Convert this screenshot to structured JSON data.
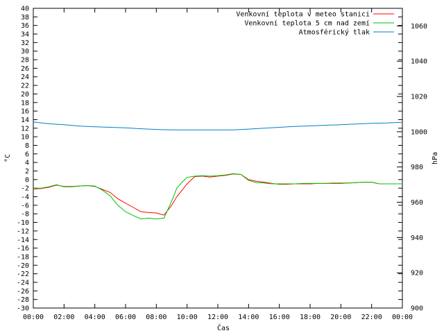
{
  "chart_data": {
    "type": "line",
    "title": "",
    "xlabel": "Čas",
    "ylabel": "°C",
    "y2label": "hPa",
    "ylim": [
      -30,
      40
    ],
    "y2lim": [
      900,
      1070
    ],
    "xlim": [
      "00:00",
      "24:00"
    ],
    "x_ticks": [
      "00:00",
      "02:00",
      "04:00",
      "06:00",
      "08:00",
      "10:00",
      "12:00",
      "14:00",
      "16:00",
      "18:00",
      "20:00",
      "22:00",
      "00:00"
    ],
    "y_ticks": [
      40,
      38,
      36,
      34,
      32,
      30,
      28,
      26,
      24,
      22,
      20,
      18,
      16,
      14,
      12,
      10,
      8,
      6,
      4,
      2,
      0,
      -2,
      -4,
      -6,
      -8,
      -10,
      -12,
      -14,
      -16,
      -18,
      -20,
      -22,
      -24,
      -26,
      -28,
      -30
    ],
    "y2_ticks": [
      1060,
      1040,
      1020,
      1000,
      980,
      960,
      940,
      920,
      900
    ],
    "grid": false,
    "legend_position": "top-right",
    "series": [
      {
        "name": "Venkovní teplota v meteo stanici",
        "color": "#ff0000",
        "axis": "left",
        "x": [
          "00:00",
          "00:30",
          "01:00",
          "01:30",
          "02:00",
          "02:30",
          "03:00",
          "03:30",
          "04:00",
          "04:30",
          "05:00",
          "05:30",
          "06:00",
          "06:30",
          "07:00",
          "07:30",
          "08:00",
          "08:30",
          "09:00",
          "09:20",
          "09:40",
          "10:00",
          "10:30",
          "11:00",
          "11:30",
          "12:00",
          "12:30",
          "13:00",
          "13:30",
          "14:00",
          "14:30",
          "15:00",
          "15:30",
          "16:00",
          "16:30",
          "17:00",
          "17:30",
          "18:00",
          "18:30",
          "19:00",
          "19:30",
          "20:00",
          "20:30",
          "21:00",
          "21:30",
          "22:00",
          "22:30",
          "23:00",
          "23:30",
          "24:00"
        ],
        "values": [
          -2.2,
          -2.1,
          -1.8,
          -1.3,
          -1.6,
          -1.6,
          -1.5,
          -1.4,
          -1.6,
          -2.3,
          -3.0,
          -4.5,
          -5.5,
          -6.5,
          -7.5,
          -7.7,
          -7.8,
          -8.3,
          -6.0,
          -4.0,
          -2.5,
          -1.0,
          0.7,
          0.8,
          0.6,
          0.8,
          1.0,
          1.3,
          1.2,
          0.0,
          -0.4,
          -0.6,
          -0.9,
          -1.1,
          -1.1,
          -1.0,
          -1.0,
          -1.0,
          -0.9,
          -0.9,
          -0.9,
          -0.9,
          -0.8,
          -0.7,
          -0.6,
          -0.6,
          -1.0,
          -1.0,
          -1.0,
          -1.0
        ]
      },
      {
        "name": "Venkovní teplota 5 cm nad zemí",
        "color": "#00c000",
        "axis": "left",
        "x": [
          "00:00",
          "00:30",
          "01:00",
          "01:30",
          "02:00",
          "02:30",
          "03:00",
          "03:30",
          "04:00",
          "04:30",
          "05:00",
          "05:30",
          "06:00",
          "06:30",
          "07:00",
          "07:30",
          "08:00",
          "08:30",
          "09:00",
          "09:20",
          "09:40",
          "10:00",
          "10:30",
          "11:00",
          "11:30",
          "12:00",
          "12:30",
          "13:00",
          "13:30",
          "14:00",
          "14:30",
          "15:00",
          "15:30",
          "16:00",
          "16:30",
          "17:00",
          "17:30",
          "18:00",
          "18:30",
          "19:00",
          "19:30",
          "20:00",
          "20:30",
          "21:00",
          "21:30",
          "22:00",
          "22:30",
          "23:00",
          "23:30",
          "24:00"
        ],
        "values": [
          -2.0,
          -2.0,
          -1.7,
          -1.2,
          -1.7,
          -1.7,
          -1.5,
          -1.4,
          -1.5,
          -2.5,
          -3.8,
          -6.0,
          -7.5,
          -8.4,
          -9.2,
          -9.0,
          -9.2,
          -9.0,
          -5.0,
          -2.0,
          -0.6,
          0.5,
          0.8,
          0.9,
          0.8,
          0.9,
          1.1,
          1.4,
          1.2,
          -0.2,
          -0.7,
          -0.8,
          -1.0,
          -1.0,
          -1.0,
          -1.0,
          -0.9,
          -0.9,
          -0.9,
          -0.9,
          -0.8,
          -0.8,
          -0.8,
          -0.7,
          -0.6,
          -0.6,
          -1.0,
          -1.0,
          -1.0,
          -1.0
        ]
      },
      {
        "name": "Atmosférický tlak",
        "color": "#0080c0",
        "axis": "right",
        "x": [
          "00:00",
          "01:00",
          "02:00",
          "03:00",
          "04:00",
          "05:00",
          "06:00",
          "07:00",
          "08:00",
          "09:00",
          "10:00",
          "11:00",
          "12:00",
          "13:00",
          "14:00",
          "15:00",
          "16:00",
          "17:00",
          "18:00",
          "19:00",
          "20:00",
          "21:00",
          "22:00",
          "23:00",
          "24:00"
        ],
        "values": [
          1005.5,
          1004.5,
          1004.0,
          1003.2,
          1002.8,
          1002.5,
          1002.2,
          1001.7,
          1001.3,
          1001.0,
          1001.0,
          1001.0,
          1001.0,
          1001.0,
          1001.5,
          1002.0,
          1002.5,
          1003.0,
          1003.3,
          1003.7,
          1004.0,
          1004.4,
          1004.8,
          1005.0,
          1005.4
        ]
      }
    ]
  }
}
